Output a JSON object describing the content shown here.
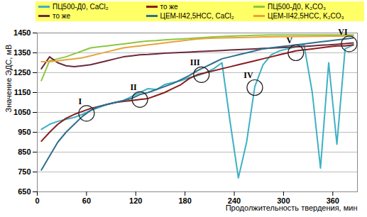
{
  "chart_data": {
    "type": "line",
    "y_label": "Значение ЭДС, мВ",
    "x_label": "Продолжительность твердения, мин",
    "x": [
      5,
      15,
      25,
      35,
      45,
      55,
      65,
      75,
      85,
      95,
      105,
      115,
      125,
      135,
      145,
      155,
      165,
      175,
      185,
      195,
      205,
      215,
      225,
      235,
      245,
      255,
      265,
      275,
      285,
      295,
      305,
      315,
      325,
      335,
      345,
      355,
      365,
      375,
      385
    ],
    "series": [
      {
        "name": "ПЦ500-Д0, CaCl₂",
        "color": "#3fb0c4",
        "values": [
          965,
          990,
          1005,
          1015,
          1025,
          1040,
          1060,
          1075,
          1090,
          1100,
          1110,
          1130,
          1150,
          1170,
          1165,
          1190,
          1200,
          1210,
          1225,
          1235,
          1250,
          1270,
          1300,
          1000,
          720,
          900,
          1180,
          1290,
          1340,
          1360,
          1370,
          1380,
          1390,
          1150,
          770,
          1300,
          890,
          1370,
          1390
        ]
      },
      {
        "name": "то же",
        "color": "#8b1c1c",
        "values": [
          905,
          950,
          990,
          1020,
          1040,
          1055,
          1070,
          1080,
          1090,
          1100,
          1105,
          1110,
          1115,
          1120,
          1135,
          1150,
          1170,
          1190,
          1220,
          1240,
          1250,
          1260,
          1270,
          1280,
          1290,
          1300,
          1310,
          1320,
          1330,
          1340,
          1350,
          1360,
          1365,
          1370,
          1375,
          1380,
          1385,
          1385,
          1390
        ]
      },
      {
        "name": "ПЦ500-Д0, K₂CO₃",
        "color": "#8dc63f",
        "values": [
          1210,
          1310,
          1320,
          1330,
          1345,
          1360,
          1375,
          1380,
          1385,
          1390,
          1395,
          1400,
          1405,
          1410,
          1412,
          1415,
          1418,
          1420,
          1422,
          1425,
          1428,
          1430,
          1432,
          1434,
          1436,
          1437,
          1438,
          1439,
          1440,
          1440,
          1440,
          1440,
          1440,
          1440,
          1440,
          1440,
          1440,
          1440,
          1440
        ]
      },
      {
        "name": "то же",
        "color": "#6b2a3a",
        "values": [
          1270,
          1330,
          1300,
          1285,
          1280,
          1285,
          1290,
          1300,
          1310,
          1320,
          1330,
          1335,
          1340,
          1342,
          1345,
          1348,
          1350,
          1352,
          1354,
          1356,
          1358,
          1360,
          1362,
          1364,
          1366,
          1368,
          1370,
          1372,
          1374,
          1376,
          1378,
          1380,
          1382,
          1385,
          1388,
          1390,
          1393,
          1396,
          1400
        ]
      },
      {
        "name": "ЦЕМ-II42,5НСС, CaCl₂",
        "color": "#2e6e8e",
        "values": [
          760,
          830,
          900,
          950,
          990,
          1030,
          1060,
          1080,
          1090,
          1100,
          1110,
          1120,
          1140,
          1150,
          1165,
          1180,
          1195,
          1215,
          1235,
          1260,
          1280,
          1300,
          1320,
          1330,
          1340,
          1350,
          1360,
          1370,
          1375,
          1380,
          1385,
          1390,
          1395,
          1400,
          1405,
          1410,
          1415,
          1420,
          1425
        ]
      },
      {
        "name": "ЦЕМ-II42,5НСС, K₂CO₃",
        "color": "#e8a33c",
        "values": [
          1305,
          1305,
          1310,
          1315,
          1320,
          1325,
          1335,
          1345,
          1355,
          1365,
          1375,
          1380,
          1385,
          1390,
          1395,
          1400,
          1405,
          1410,
          1415,
          1420,
          1422,
          1424,
          1425,
          1426,
          1427,
          1428,
          1429,
          1430,
          1430,
          1431,
          1431,
          1432,
          1432,
          1433,
          1433,
          1434,
          1434,
          1435,
          1435
        ]
      }
    ],
    "annotations": [
      {
        "text": "I",
        "x": 60,
        "y": 1045
      },
      {
        "text": "II",
        "x": 125,
        "y": 1115
      },
      {
        "text": "III",
        "x": 200,
        "y": 1240
      },
      {
        "text": "IV",
        "x": 265,
        "y": 1175
      },
      {
        "text": "V",
        "x": 315,
        "y": 1350
      },
      {
        "text": "VI",
        "x": 380,
        "y": 1395
      }
    ],
    "xlim": [
      0,
      390
    ],
    "xticks": [
      0,
      60,
      120,
      180,
      240,
      300,
      360
    ],
    "ylim": [
      650,
      1450
    ],
    "yticks": [
      650,
      750,
      850,
      950,
      1050,
      1150,
      1250,
      1350,
      1450
    ],
    "grid": "y",
    "legend": "top"
  }
}
